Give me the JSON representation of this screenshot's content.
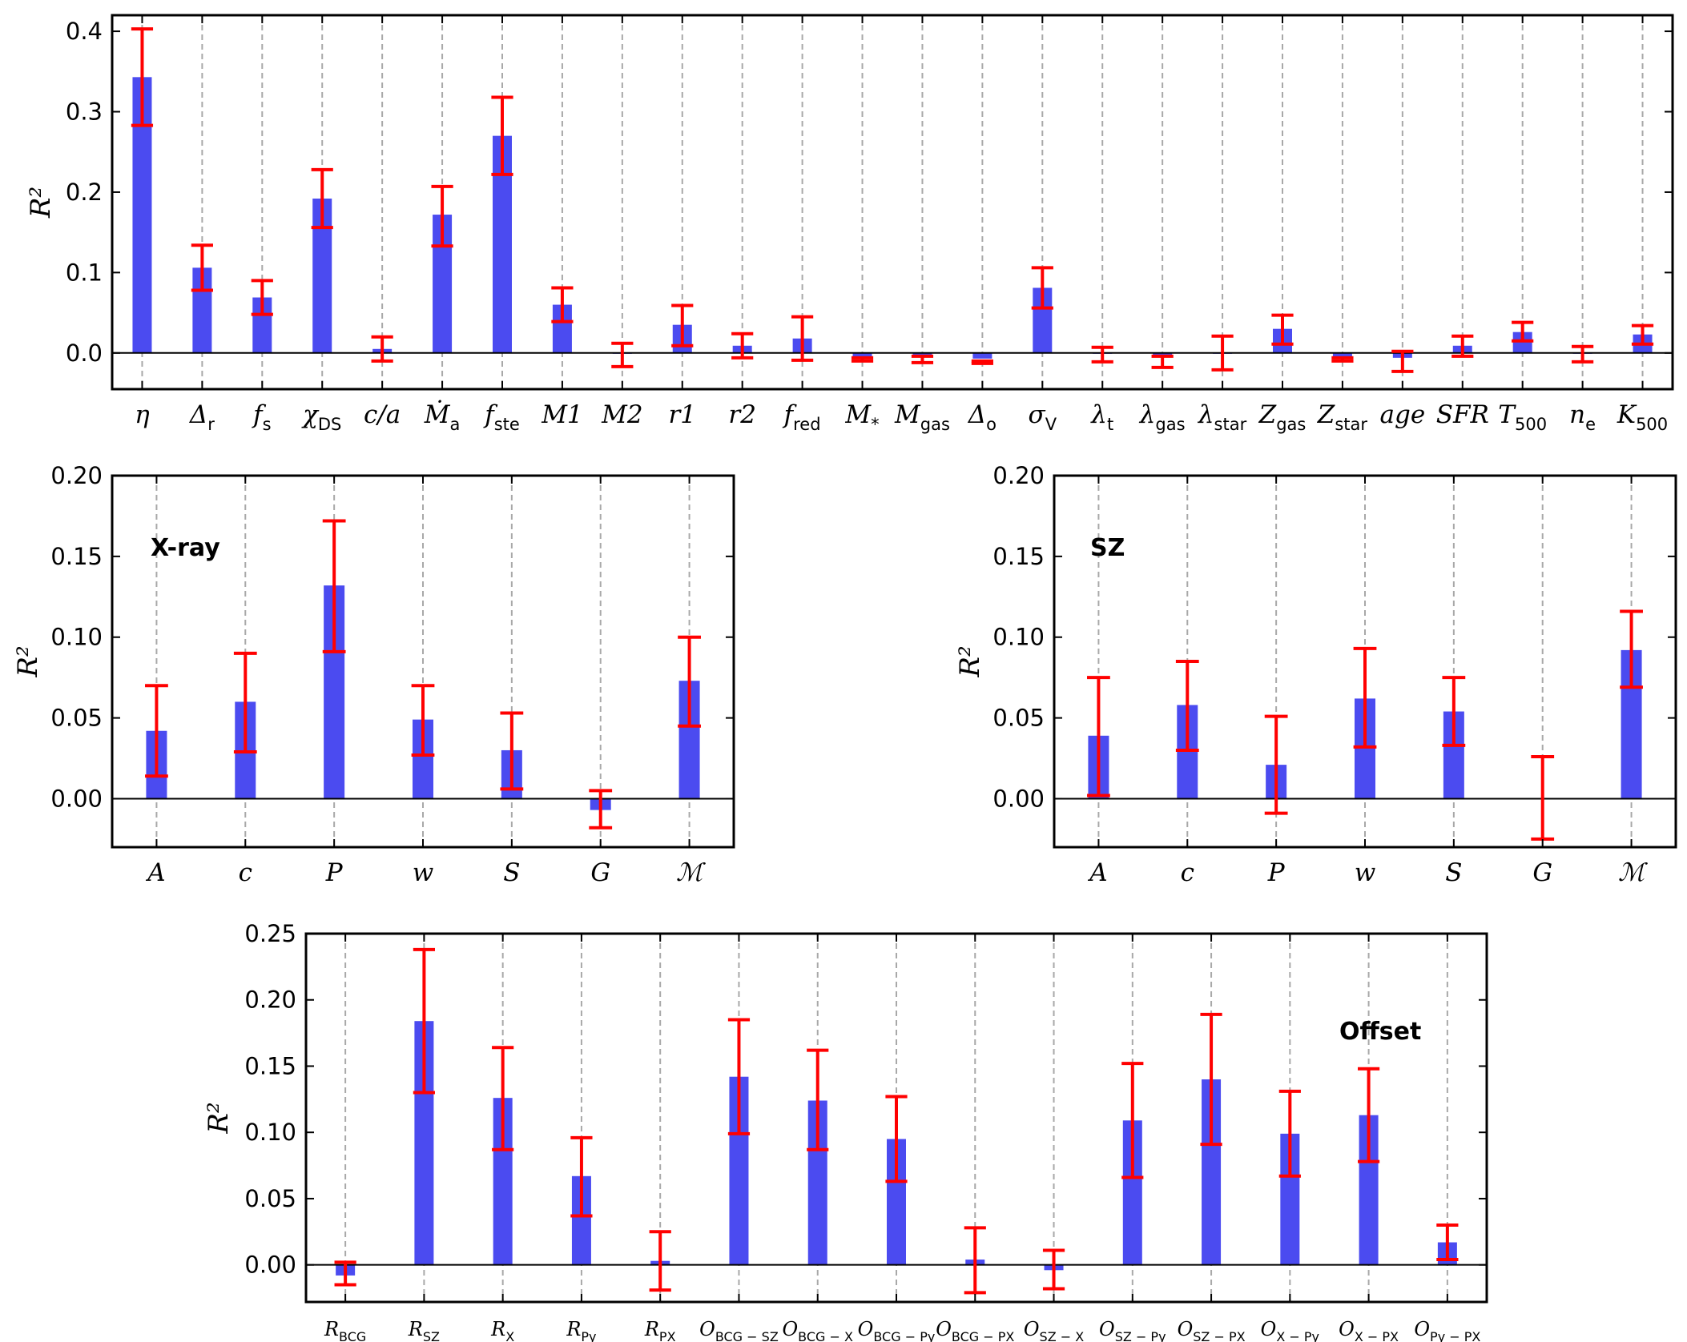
{
  "style": {
    "bar_color": "#4b4bf0",
    "error_color": "#ff0000",
    "grid_color": "#a8a8a8",
    "axis_color": "#000000"
  },
  "ylabel": "R²",
  "chart_data": [
    {
      "id": "morphology",
      "type": "bar",
      "title": "",
      "ylabel": "R²",
      "ylim": [
        -0.045,
        0.42
      ],
      "yticks": [
        0.0,
        0.1,
        0.2,
        0.3,
        0.4
      ],
      "ytick_labels": [
        "0.0",
        "0.1",
        "0.2",
        "0.3",
        "0.4"
      ],
      "grid": "vertical dashed",
      "annotation": "",
      "categories": [
        {
          "base": "η",
          "sub": ""
        },
        {
          "base": "Δ",
          "sub": "r"
        },
        {
          "base": "f",
          "sub": "s"
        },
        {
          "base": "χ",
          "sub": "DS"
        },
        {
          "base": "c/a",
          "sub": ""
        },
        {
          "base": "Ṁ",
          "sub": "a"
        },
        {
          "base": "f",
          "sub": "ste"
        },
        {
          "base": "M1",
          "sub": ""
        },
        {
          "base": "M2",
          "sub": ""
        },
        {
          "base": "r1",
          "sub": ""
        },
        {
          "base": "r2",
          "sub": ""
        },
        {
          "base": "f",
          "sub": "red"
        },
        {
          "base": "M",
          "sub": "*"
        },
        {
          "base": "M",
          "sub": "gas"
        },
        {
          "base": "Δ",
          "sub": "o"
        },
        {
          "base": "σ",
          "sub": "V"
        },
        {
          "base": "λ",
          "sub": "t"
        },
        {
          "base": "λ",
          "sub": "gas"
        },
        {
          "base": "λ",
          "sub": "star"
        },
        {
          "base": "Z",
          "sub": "gas"
        },
        {
          "base": "Z",
          "sub": "star"
        },
        {
          "base": "age",
          "sub": ""
        },
        {
          "base": "SFR",
          "sub": ""
        },
        {
          "base": "T",
          "sub": "500"
        },
        {
          "base": "n",
          "sub": "e"
        },
        {
          "base": "K",
          "sub": "500"
        }
      ],
      "values": [
        0.343,
        0.106,
        0.069,
        0.192,
        0.005,
        0.172,
        0.27,
        0.06,
        -0.001,
        0.035,
        0.009,
        0.018,
        -0.005,
        -0.004,
        -0.007,
        0.081,
        -0.001,
        -0.004,
        0.0,
        0.03,
        -0.005,
        -0.006,
        0.009,
        0.026,
        -0.001,
        0.023
      ],
      "err_low": [
        0.283,
        0.078,
        0.048,
        0.156,
        -0.01,
        0.133,
        0.222,
        0.039,
        -0.017,
        0.009,
        -0.006,
        -0.009,
        -0.01,
        -0.012,
        -0.013,
        0.056,
        -0.011,
        -0.018,
        -0.021,
        0.011,
        -0.01,
        -0.023,
        -0.004,
        0.015,
        -0.011,
        0.011
      ],
      "err_high": [
        0.403,
        0.134,
        0.09,
        0.228,
        0.02,
        0.207,
        0.318,
        0.081,
        0.012,
        0.059,
        0.024,
        0.045,
        -0.006,
        -0.004,
        -0.01,
        0.106,
        0.007,
        -0.004,
        0.021,
        0.047,
        -0.006,
        0.002,
        0.021,
        0.038,
        0.008,
        0.034
      ]
    },
    {
      "id": "xray",
      "type": "bar",
      "title": "",
      "ylabel": "R²",
      "ylim": [
        -0.03,
        0.2
      ],
      "yticks": [
        0.0,
        0.05,
        0.1,
        0.15,
        0.2
      ],
      "ytick_labels": [
        "0.00",
        "0.05",
        "0.10",
        "0.15",
        "0.20"
      ],
      "grid": "vertical dashed",
      "annotation": "X-ray",
      "categories": [
        {
          "base": "A",
          "sub": ""
        },
        {
          "base": "c",
          "sub": ""
        },
        {
          "base": "P",
          "sub": ""
        },
        {
          "base": "w",
          "sub": ""
        },
        {
          "base": "S",
          "sub": ""
        },
        {
          "base": "G",
          "sub": ""
        },
        {
          "base": "ℳ",
          "sub": ""
        }
      ],
      "values": [
        0.042,
        0.06,
        0.132,
        0.049,
        0.03,
        -0.007,
        0.073
      ],
      "err_low": [
        0.014,
        0.029,
        0.091,
        0.027,
        0.006,
        -0.018,
        0.045
      ],
      "err_high": [
        0.07,
        0.09,
        0.172,
        0.07,
        0.053,
        0.005,
        0.1
      ]
    },
    {
      "id": "sz",
      "type": "bar",
      "title": "",
      "ylabel": "R²",
      "ylim": [
        -0.03,
        0.2
      ],
      "yticks": [
        0.0,
        0.05,
        0.1,
        0.15,
        0.2
      ],
      "ytick_labels": [
        "0.00",
        "0.05",
        "0.10",
        "0.15",
        "0.20"
      ],
      "grid": "vertical dashed",
      "annotation": "SZ",
      "categories": [
        {
          "base": "A",
          "sub": ""
        },
        {
          "base": "c",
          "sub": ""
        },
        {
          "base": "P",
          "sub": ""
        },
        {
          "base": "w",
          "sub": ""
        },
        {
          "base": "S",
          "sub": ""
        },
        {
          "base": "G",
          "sub": ""
        },
        {
          "base": "ℳ",
          "sub": ""
        }
      ],
      "values": [
        0.039,
        0.058,
        0.021,
        0.062,
        0.054,
        0.0,
        0.092
      ],
      "err_low": [
        0.002,
        0.03,
        -0.009,
        0.032,
        0.033,
        -0.025,
        0.069
      ],
      "err_high": [
        0.075,
        0.085,
        0.051,
        0.093,
        0.075,
        0.026,
        0.116
      ]
    },
    {
      "id": "offset",
      "type": "bar",
      "title": "",
      "ylabel": "R²",
      "ylim": [
        -0.028,
        0.25
      ],
      "yticks": [
        0.0,
        0.05,
        0.1,
        0.15,
        0.2,
        0.25
      ],
      "ytick_labels": [
        "0.00",
        "0.05",
        "0.10",
        "0.15",
        "0.20",
        "0.25"
      ],
      "grid": "vertical dashed",
      "annotation": "Offset",
      "categories": [
        {
          "base": "R",
          "sub": "BCG"
        },
        {
          "base": "R",
          "sub": "SZ"
        },
        {
          "base": "R",
          "sub": "X"
        },
        {
          "base": "R",
          "sub": "Py"
        },
        {
          "base": "R",
          "sub": "PX"
        },
        {
          "base": "O",
          "sub": "BCG − SZ"
        },
        {
          "base": "O",
          "sub": "BCG − X"
        },
        {
          "base": "O",
          "sub": "BCG − Py"
        },
        {
          "base": "O",
          "sub": "BCG − PX"
        },
        {
          "base": "O",
          "sub": "SZ − X"
        },
        {
          "base": "O",
          "sub": "SZ − Py"
        },
        {
          "base": "O",
          "sub": "SZ − PX"
        },
        {
          "base": "O",
          "sub": "X − Py"
        },
        {
          "base": "O",
          "sub": "X − PX"
        },
        {
          "base": "O",
          "sub": "Py − PX"
        }
      ],
      "values": [
        -0.008,
        0.184,
        0.126,
        0.067,
        0.003,
        0.142,
        0.124,
        0.095,
        0.004,
        -0.004,
        0.109,
        0.14,
        0.099,
        0.113,
        0.017
      ],
      "err_low": [
        -0.015,
        0.13,
        0.087,
        0.037,
        -0.019,
        0.099,
        0.087,
        0.063,
        -0.021,
        -0.018,
        0.066,
        0.091,
        0.067,
        0.078,
        0.004
      ],
      "err_high": [
        0.002,
        0.238,
        0.164,
        0.096,
        0.025,
        0.185,
        0.162,
        0.127,
        0.028,
        0.011,
        0.152,
        0.189,
        0.131,
        0.148,
        0.03
      ]
    }
  ]
}
